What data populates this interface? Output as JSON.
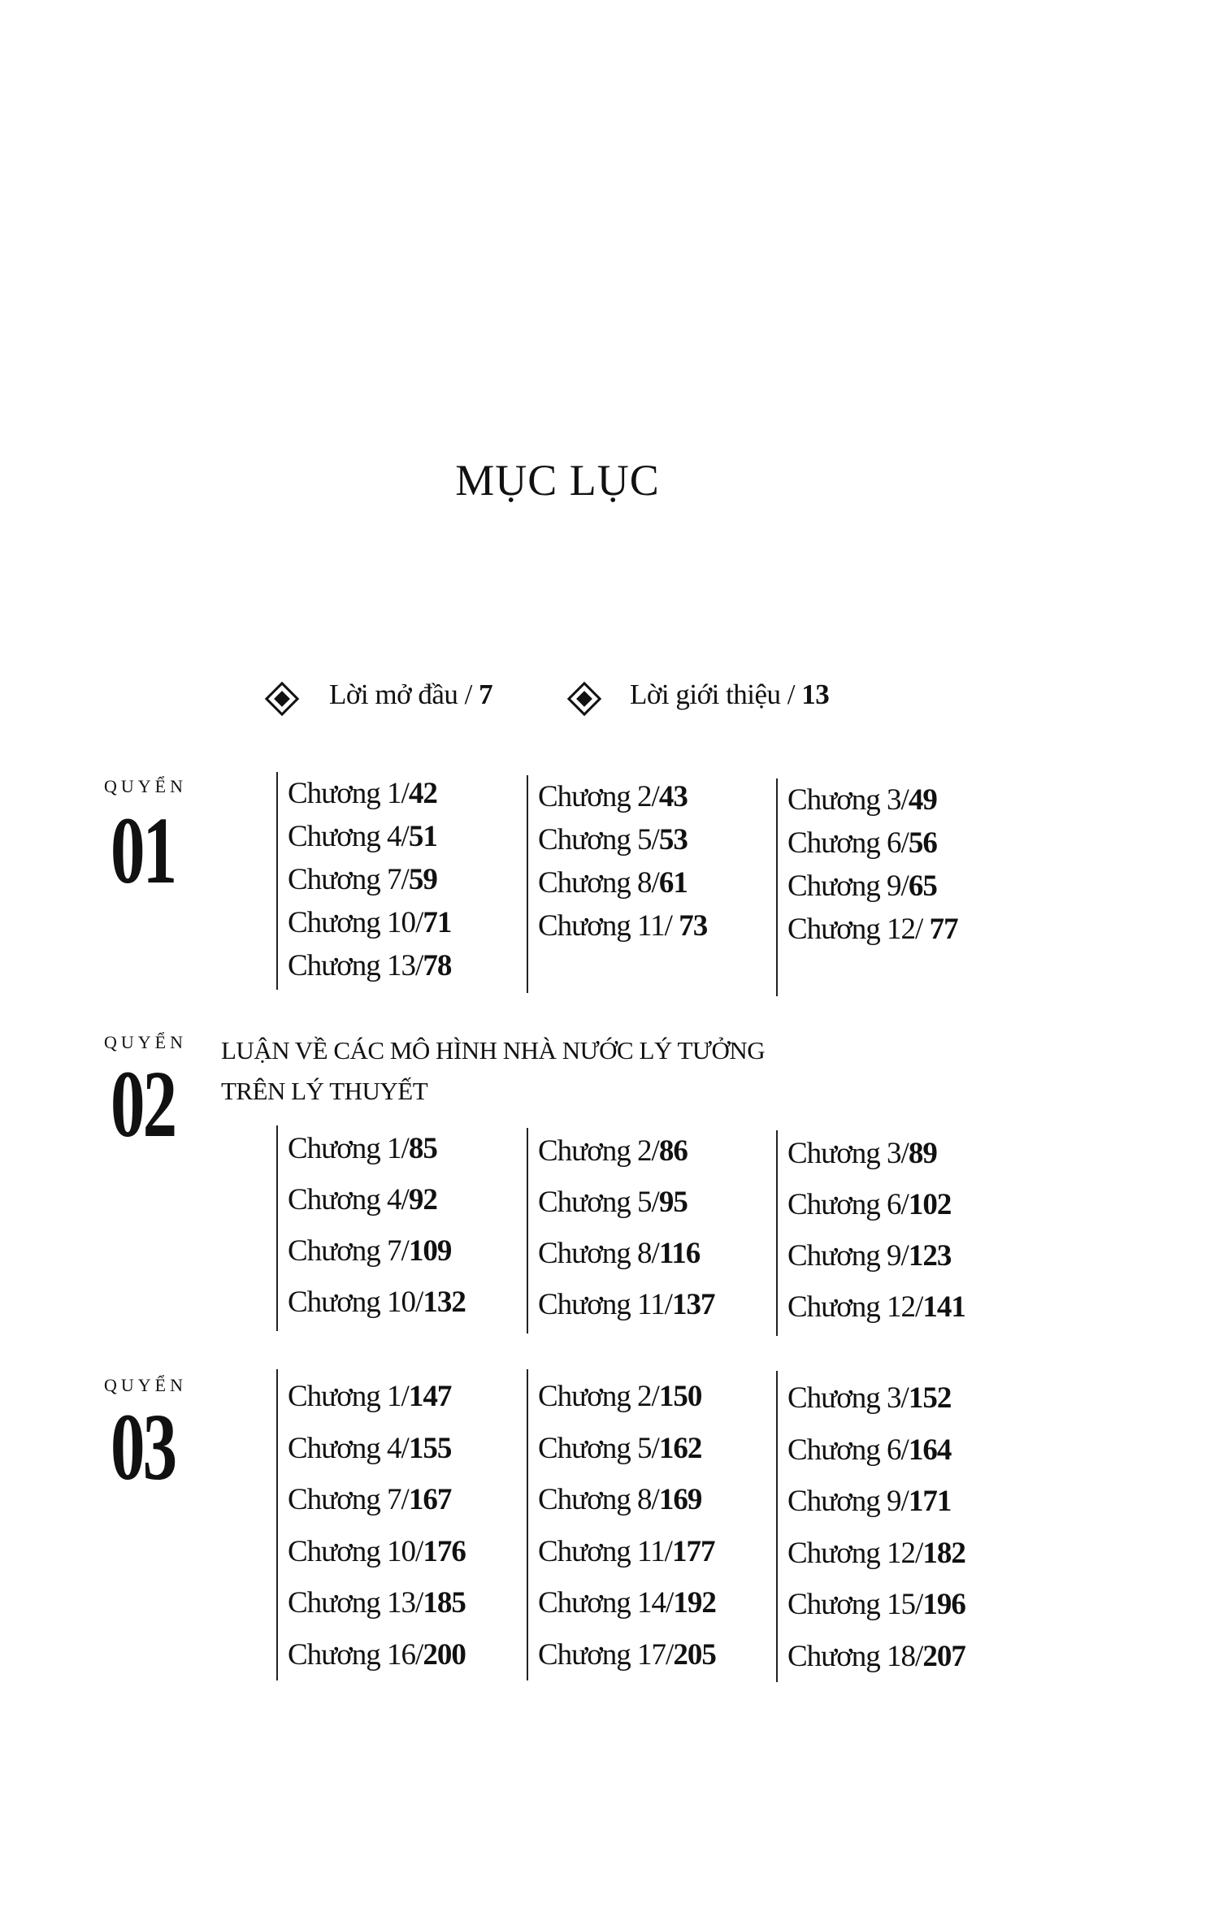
{
  "title": "MỤC LỤC",
  "intro": [
    {
      "label": "Lời mở đầu / ",
      "page": "7"
    },
    {
      "label": "Lời giới thiệu / ",
      "page": "13"
    }
  ],
  "books": [
    {
      "quyen": "QUYỂN",
      "number": "01",
      "title_lines": [],
      "columns": [
        [
          {
            "label": "Chương 1/",
            "page": "42"
          },
          {
            "label": "Chương 4/",
            "page": "51"
          },
          {
            "label": "Chương 7/",
            "page": "59"
          },
          {
            "label": "Chương 10/",
            "page": "71"
          },
          {
            "label": "Chương 13/",
            "page": "78"
          }
        ],
        [
          {
            "label": "Chương 2/",
            "page": "43"
          },
          {
            "label": "Chương 5/",
            "page": "53"
          },
          {
            "label": "Chương 8/",
            "page": "61"
          },
          {
            "label": "Chương 11/ ",
            "page": "73"
          }
        ],
        [
          {
            "label": "Chương 3/",
            "page": "49"
          },
          {
            "label": "Chương 6/",
            "page": "56"
          },
          {
            "label": "Chương 9/",
            "page": "65"
          },
          {
            "label": "Chương 12/ ",
            "page": "77"
          }
        ]
      ]
    },
    {
      "quyen": "QUYỂN",
      "number": "02",
      "title_lines": [
        "LUẬN VỀ CÁC MÔ HÌNH NHÀ NƯỚC LÝ TƯỞNG",
        "TRÊN LÝ THUYẾT"
      ],
      "columns": [
        [
          {
            "label": "Chương 1/",
            "page": "85"
          },
          {
            "label": "Chương 4/",
            "page": "92"
          },
          {
            "label": "Chương 7/",
            "page": "109"
          },
          {
            "label": "Chương 10/",
            "page": "132"
          }
        ],
        [
          {
            "label": "Chương 2/",
            "page": "86"
          },
          {
            "label": "Chương 5/",
            "page": "95"
          },
          {
            "label": "Chương 8/",
            "page": "116"
          },
          {
            "label": "Chương 11/",
            "page": "137"
          }
        ],
        [
          {
            "label": "Chương 3/",
            "page": "89"
          },
          {
            "label": "Chương 6/",
            "page": "102"
          },
          {
            "label": "Chương 9/",
            "page": "123"
          },
          {
            "label": "Chương 12/",
            "page": "141"
          }
        ]
      ]
    },
    {
      "quyen": "QUYỂN",
      "number": "03",
      "title_lines": [],
      "columns": [
        [
          {
            "label": "Chương 1/",
            "page": "147"
          },
          {
            "label": "Chương 4/",
            "page": "155"
          },
          {
            "label": "Chương 7/",
            "page": "167"
          },
          {
            "label": "Chương 10/",
            "page": "176"
          },
          {
            "label": "Chương 13/",
            "page": "185"
          },
          {
            "label": "Chương 16/",
            "page": "200"
          }
        ],
        [
          {
            "label": "Chương 2/",
            "page": "150"
          },
          {
            "label": "Chương 5/",
            "page": "162"
          },
          {
            "label": "Chương 8/",
            "page": "169"
          },
          {
            "label": "Chương 11/",
            "page": "177"
          },
          {
            "label": "Chương 14/",
            "page": "192"
          },
          {
            "label": "Chương 17/",
            "page": "205"
          }
        ],
        [
          {
            "label": "Chương 3/",
            "page": "152"
          },
          {
            "label": "Chương 6/",
            "page": "164"
          },
          {
            "label": "Chương 9/",
            "page": "171"
          },
          {
            "label": "Chương 12/",
            "page": "182"
          },
          {
            "label": "Chương 15/",
            "page": "196"
          },
          {
            "label": "Chương 18/",
            "page": "207"
          }
        ]
      ]
    }
  ]
}
